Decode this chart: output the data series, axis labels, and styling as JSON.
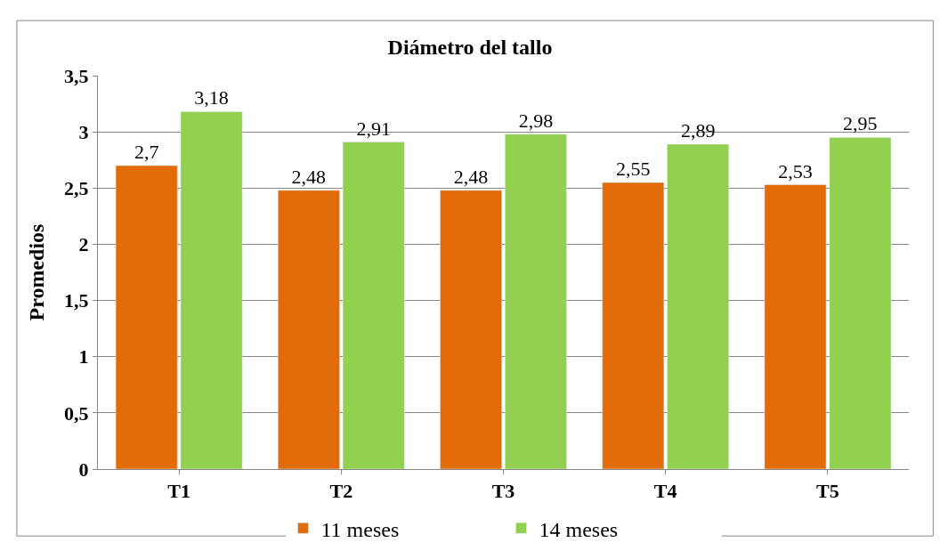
{
  "chart_data": {
    "type": "bar",
    "title": "Diámetro del tallo",
    "ylabel": "Promedios",
    "categories": [
      "T1",
      "T2",
      "T3",
      "T4",
      "T5"
    ],
    "series": [
      {
        "name": "11 meses",
        "color": "#e36c0a",
        "values": [
          2.7,
          2.48,
          2.48,
          2.55,
          2.53
        ],
        "value_labels": [
          "2,7",
          "2,48",
          "2,48",
          "2,55",
          "2,53"
        ]
      },
      {
        "name": "14 meses",
        "color": "#92d050",
        "values": [
          3.18,
          2.91,
          2.98,
          2.89,
          2.95
        ],
        "value_labels": [
          "3,18",
          "2,91",
          "2,98",
          "2,89",
          "2,95"
        ]
      }
    ],
    "ylim": [
      0,
      3.5
    ],
    "yticks": [
      0,
      {
        "value": 0.5,
        "label": "0,5"
      },
      1,
      {
        "value": 1.5,
        "label": "1,5"
      },
      2,
      {
        "value": 2.5,
        "label": "2,5"
      },
      3,
      {
        "value": 3.5,
        "label": "3,5"
      }
    ],
    "grid": "y",
    "legend": "bottom"
  }
}
